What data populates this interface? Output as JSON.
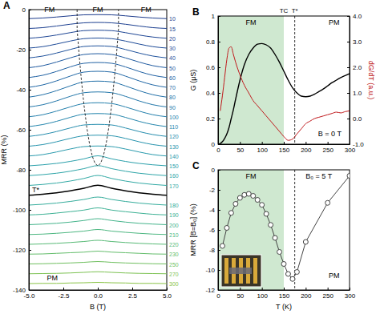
{
  "chart_data": [
    {
      "panel": "A",
      "type": "line",
      "x_label": "B (T)",
      "y_label": "MRR (%)",
      "xlim": [
        -5,
        5
      ],
      "ylim": [
        -140,
        0
      ],
      "xticks": [
        {
          "value": -5,
          "label": "-5.0"
        },
        {
          "value": -2.5,
          "label": "-2.5"
        },
        {
          "value": 0,
          "label": "0.0"
        },
        {
          "value": 2.5,
          "label": "2.5"
        },
        {
          "value": 5,
          "label": "5.0"
        }
      ],
      "yticks": [
        -140,
        -120,
        -100,
        -80,
        -60,
        -40,
        -20,
        0
      ],
      "x": [
        -5,
        -4,
        -3,
        -2,
        -1,
        0,
        1,
        2,
        3,
        4,
        5
      ],
      "series": [
        {
          "name": "10",
          "color": "#1b3a8c",
          "values": [
            -4.5,
            -4.2,
            -3.7,
            -3.1,
            -2.6,
            -2.5,
            -2.6,
            -3.1,
            -3.7,
            -4.2,
            -4.5
          ]
        },
        {
          "name": "15",
          "color": "#1c3f90",
          "values": [
            -9.4,
            -9.0,
            -8.2,
            -7.3,
            -6.6,
            -6.4,
            -6.6,
            -7.3,
            -8.2,
            -9.0,
            -9.4
          ]
        },
        {
          "name": "20",
          "color": "#1d4594",
          "values": [
            -14.3,
            -13.7,
            -12.7,
            -11.5,
            -10.5,
            -10.3,
            -10.5,
            -11.5,
            -12.7,
            -13.7,
            -14.3
          ]
        },
        {
          "name": "30",
          "color": "#1e4b98",
          "values": [
            -19.2,
            -18.5,
            -17.2,
            -15.7,
            -14.5,
            -14.2,
            -14.5,
            -15.7,
            -17.2,
            -18.5,
            -19.2
          ]
        },
        {
          "name": "40",
          "color": "#1f529c",
          "values": [
            -24.1,
            -23.2,
            -21.7,
            -19.9,
            -18.4,
            -18.1,
            -18.4,
            -19.9,
            -21.7,
            -23.2,
            -24.1
          ]
        },
        {
          "name": "50",
          "color": "#1f5aa0",
          "values": [
            -29,
            -28,
            -26.2,
            -24.1,
            -22.4,
            -22,
            -22.4,
            -24.1,
            -26.2,
            -28,
            -29
          ]
        },
        {
          "name": "60",
          "color": "#2061a3",
          "values": [
            -33.9,
            -32.8,
            -30.9,
            -28.6,
            -26.8,
            -26.4,
            -26.8,
            -28.6,
            -30.9,
            -32.8,
            -33.9
          ]
        },
        {
          "name": "70",
          "color": "#2168a6",
          "values": [
            -38.8,
            -37.6,
            -35.6,
            -33.2,
            -31.2,
            -30.8,
            -31.2,
            -33.2,
            -35.6,
            -37.6,
            -38.8
          ]
        },
        {
          "name": "80",
          "color": "#2270a8",
          "values": [
            -43.7,
            -42.5,
            -40.5,
            -38.1,
            -36.1,
            -35.7,
            -36.1,
            -38.1,
            -40.5,
            -42.5,
            -43.7
          ]
        },
        {
          "name": "90",
          "color": "#2377aa",
          "values": [
            -48.6,
            -47.5,
            -45.6,
            -43.3,
            -41.5,
            -41.1,
            -41.5,
            -43.3,
            -45.6,
            -47.5,
            -48.6
          ]
        },
        {
          "name": "100",
          "color": "#247fac",
          "values": [
            -53.5,
            -52.5,
            -50.7,
            -48.6,
            -46.9,
            -46.5,
            -46.9,
            -48.6,
            -50.7,
            -52.5,
            -53.5
          ]
        },
        {
          "name": "110",
          "color": "#2586ad",
          "values": [
            -58.4,
            -57.4,
            -55.8,
            -53.8,
            -52.2,
            -51.9,
            -52.2,
            -53.8,
            -55.8,
            -57.4,
            -58.4
          ]
        },
        {
          "name": "120",
          "color": "#268dae",
          "values": [
            -63.3,
            -62.4,
            -60.9,
            -59.1,
            -57.6,
            -57.3,
            -57.6,
            -59.1,
            -60.9,
            -62.4,
            -63.3
          ]
        },
        {
          "name": "130",
          "color": "#2894ae",
          "values": [
            -68.2,
            -67.4,
            -66.0,
            -64.3,
            -63.0,
            -62.7,
            -63.0,
            -64.3,
            -66.0,
            -67.4,
            -68.2
          ]
        },
        {
          "name": "140",
          "color": "#299aad",
          "values": [
            -73.1,
            -72.4,
            -71.1,
            -69.6,
            -68.4,
            -68.1,
            -68.4,
            -69.6,
            -71.1,
            -72.4,
            -73.1
          ]
        },
        {
          "name": "150",
          "color": "#2ba0ab",
          "values": [
            -78,
            -77.5,
            -76.8,
            -75.8,
            -74.5,
            -73,
            -74.5,
            -75.8,
            -76.8,
            -77.5,
            -78
          ]
        },
        {
          "name": "160",
          "color": "#2ea5a8",
          "values": [
            -82.9,
            -82.4,
            -81.7,
            -80.7,
            -79.4,
            -77.9,
            -79.4,
            -80.7,
            -81.7,
            -82.4,
            -82.9
          ]
        },
        {
          "name": "170",
          "color": "#31a9a4",
          "values": [
            -87.8,
            -87.3,
            -86.6,
            -85.6,
            -84.3,
            -82.8,
            -84.3,
            -85.6,
            -86.6,
            -87.3,
            -87.8
          ]
        },
        {
          "color": "#000000",
          "values": [
            -92.7,
            -92.2,
            -91.5,
            -90.5,
            -89.2,
            -87.7,
            -89.2,
            -90.5,
            -91.5,
            -92.2,
            -92.7
          ]
        },
        {
          "name": "180",
          "color": "#36ad9c",
          "values": [
            -97.6,
            -97.2,
            -96.6,
            -95.8,
            -94.8,
            -93.6,
            -94.8,
            -95.8,
            -96.6,
            -97.2,
            -97.6
          ]
        },
        {
          "name": "190",
          "color": "#3cb194",
          "values": [
            -102.5,
            -102.2,
            -101.6,
            -100.9,
            -100.1,
            -99,
            -100.1,
            -100.9,
            -101.6,
            -102.2,
            -102.5
          ]
        },
        {
          "name": "200",
          "color": "#44b48b",
          "values": [
            -107.4,
            -107.1,
            -106.7,
            -106.1,
            -105.3,
            -104.4,
            -105.3,
            -106.1,
            -106.7,
            -107.1,
            -107.4
          ]
        },
        {
          "name": "210",
          "color": "#4db781",
          "values": [
            -112.3,
            -112.1,
            -111.7,
            -111.2,
            -110.6,
            -109.8,
            -110.6,
            -111.2,
            -111.7,
            -112.1,
            -112.3
          ]
        },
        {
          "name": "220",
          "color": "#58ba76",
          "values": [
            -117.2,
            -117,
            -116.7,
            -116.3,
            -115.8,
            -115.2,
            -115.8,
            -116.3,
            -116.7,
            -117,
            -117.2
          ]
        },
        {
          "name": "230",
          "color": "#64bd6b",
          "values": [
            -122.1,
            -122,
            -121.7,
            -121.4,
            -121.1,
            -120.6,
            -121.1,
            -121.4,
            -121.7,
            -122,
            -122.1
          ]
        },
        {
          "name": "250",
          "color": "#70bf5f",
          "values": [
            -127,
            -126.9,
            -126.7,
            -126.5,
            -126.2,
            -125.8,
            -126.2,
            -126.5,
            -126.7,
            -126.9,
            -127
          ]
        },
        {
          "name": "270",
          "color": "#7dc253",
          "values": [
            -131.9,
            -131.8,
            -131.7,
            -131.5,
            -131.2,
            -130.9,
            -131.2,
            -131.5,
            -131.7,
            -131.8,
            -131.9
          ]
        },
        {
          "name": "300",
          "color": "#8ac447",
          "values": [
            -136.8,
            -136.7,
            -136.7,
            -136.5,
            -136.4,
            -136.2,
            -136.4,
            -136.5,
            -136.7,
            -136.7,
            -136.8
          ]
        }
      ],
      "boundary": {
        "x": [
          -1.5,
          -1.5,
          -1.35,
          -1.2,
          -1,
          -0.8,
          -0.6,
          -0.4,
          -0.2,
          0,
          0.2,
          0.4,
          0.6,
          0.8,
          1,
          1.2,
          1.35,
          1.5,
          1.5
        ],
        "y": [
          0,
          -10,
          -22.9,
          -34.5,
          -47.8,
          -58.7,
          -67.1,
          -73.2,
          -76.8,
          -78,
          -76.8,
          -73.2,
          -67.1,
          -58.7,
          -47.8,
          -34.5,
          -22.9,
          -10,
          0
        ],
        "line_style": "dashed"
      },
      "annotations": [
        {
          "text": "FM",
          "x": -3.5,
          "y": -1.2
        },
        {
          "text": "FM",
          "x": 0,
          "y": -1.2
        },
        {
          "text": "FM",
          "x": 3.5,
          "y": -1.2
        },
        {
          "text": "T*",
          "x": -4.5,
          "y": -91.3
        },
        {
          "text": "PM",
          "x": -3.3,
          "y": -135.3
        }
      ]
    },
    {
      "panel": "B",
      "type": "line",
      "y_label": "G (μS)",
      "y2_label": "dG/dT (a.u.)",
      "xlim": [
        0,
        300
      ],
      "ylim": [
        0,
        1
      ],
      "y2lim": [
        -1,
        4
      ],
      "xticks": [
        0,
        50,
        100,
        150,
        200,
        250,
        300
      ],
      "yticks": [
        0,
        0.2,
        0.4,
        0.6,
        0.8,
        1
      ],
      "y2ticks": [
        {
          "value": -1,
          "label": "-1.0"
        },
        {
          "value": 0,
          "label": "0.0"
        },
        {
          "value": 1,
          "label": "1.0"
        },
        {
          "value": 2,
          "label": "2.0"
        },
        {
          "value": 3,
          "label": "3.0"
        },
        {
          "value": 4,
          "label": "4.0"
        }
      ],
      "x": [
        0,
        5,
        10,
        15,
        20,
        25,
        30,
        35,
        40,
        50,
        60,
        70,
        80,
        90,
        100,
        110,
        120,
        130,
        140,
        150,
        160,
        170,
        180,
        190,
        200,
        210,
        220,
        230,
        240,
        250,
        260,
        270,
        280,
        290,
        300
      ],
      "series": [
        {
          "color": "#000000",
          "values": [
            0.0,
            0.005,
            0.02,
            0.045,
            0.08,
            0.13,
            0.2,
            0.27,
            0.35,
            0.5,
            0.62,
            0.7,
            0.75,
            0.78,
            0.785,
            0.775,
            0.75,
            0.7,
            0.64,
            0.57,
            0.5,
            0.44,
            0.4,
            0.375,
            0.37,
            0.375,
            0.39,
            0.41,
            0.43,
            0.455,
            0.48,
            0.5,
            0.52,
            0.535,
            0.55
          ]
        },
        {
          "color": "#c0181b",
          "axis": "y2",
          "values": [
            null,
            0.3,
            0.9,
            1.6,
            2.3,
            2.75,
            2.8,
            2.5,
            2.2,
            1.7,
            1.3,
            1.0,
            0.7,
            0.5,
            0.3,
            0.1,
            -0.1,
            -0.3,
            -0.5,
            -0.7,
            -0.85,
            -0.8,
            -0.6,
            -0.4,
            -0.2,
            -0.1,
            0.0,
            0.05,
            0.1,
            0.15,
            0.2,
            0.25,
            0.22,
            0.27,
            0.3
          ]
        }
      ],
      "shaded": {
        "x": [
          0,
          150
        ],
        "color": "#cfe8d0"
      },
      "vlines": [
        {
          "x": 175,
          "line_style": "dashed"
        }
      ],
      "top_labels": [
        {
          "text": "TC",
          "x": 150
        },
        {
          "text": "T*",
          "x": 175
        }
      ],
      "annotations": [
        {
          "text": "FM",
          "x": 75,
          "y": 0.93
        },
        {
          "text": "PM",
          "x": 265,
          "y": 0.93
        },
        {
          "text": "B = 0 T",
          "x": 255,
          "y": 0.06
        }
      ]
    },
    {
      "panel": "C",
      "type": "line",
      "marker": "circle",
      "x_label": "T (K)",
      "y_label": "MRR [B=B₀] (%)",
      "xlim": [
        0,
        300
      ],
      "ylim": [
        -12,
        0
      ],
      "xticks": [
        0,
        50,
        100,
        150,
        200,
        250,
        300
      ],
      "yticks": [
        -12,
        -10,
        -8,
        -6,
        -4,
        -2,
        0
      ],
      "x": [
        10,
        20,
        30,
        40,
        50,
        60,
        70,
        80,
        90,
        100,
        110,
        120,
        130,
        140,
        150,
        160,
        170,
        180,
        200,
        250,
        300
      ],
      "series": [
        {
          "color": "#444444",
          "values": [
            -7.6,
            -5.8,
            -4.3,
            -3.4,
            -2.8,
            -2.5,
            -2.4,
            -2.6,
            -3.0,
            -3.5,
            -4.4,
            -5.5,
            -6.8,
            -8.2,
            -9.4,
            -10.4,
            -10.9,
            -10.2,
            -7.2,
            -3.3,
            -0.6
          ]
        }
      ],
      "shaded": {
        "x": [
          0,
          150
        ],
        "color": "#cfe8d0"
      },
      "vlines": [
        {
          "x": 175,
          "line_style": "dashed"
        }
      ],
      "annotations": [
        {
          "text": "FM",
          "x": 75,
          "y": -0.9
        },
        {
          "text": "PM",
          "x": 265,
          "y": -10.8
        },
        {
          "text": "B₀ = 5 T",
          "x": 230,
          "y": -0.9
        }
      ]
    }
  ]
}
